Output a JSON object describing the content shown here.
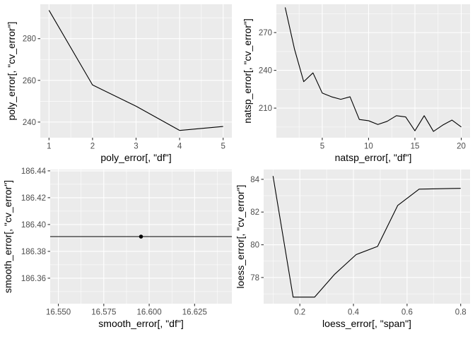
{
  "chart_data": [
    {
      "type": "line",
      "xlabel": "poly_error[, \"df\"]",
      "ylabel": "poly_error[, \"cv_error\"]",
      "xlim": [
        0.8,
        5.2
      ],
      "ylim": [
        232.5,
        296.5
      ],
      "xticks": [
        1,
        2,
        3,
        4,
        5
      ],
      "xtick_labels": [
        "1",
        "2",
        "3",
        "4",
        "5"
      ],
      "yticks": [
        240,
        260,
        280
      ],
      "ytick_labels": [
        "240",
        "260",
        "280"
      ],
      "grid": true,
      "series": [
        {
          "x": [
            1,
            2,
            3,
            4,
            5
          ],
          "y": [
            293.6,
            257.8,
            247.6,
            236.0,
            237.9
          ]
        }
      ]
    },
    {
      "type": "line",
      "xlabel": "natsp_error[, \"df\"]",
      "ylabel": "natsp_error[, \"cv_error\"]",
      "xlim": [
        0.05,
        20.95
      ],
      "ylim": [
        186.5,
        292.5
      ],
      "xticks": [
        5,
        10,
        15,
        20
      ],
      "xtick_labels": [
        "5",
        "10",
        "15",
        "20"
      ],
      "yticks": [
        210,
        240,
        270
      ],
      "ytick_labels": [
        "210",
        "240",
        "270"
      ],
      "grid": true,
      "series": [
        {
          "x": [
            1,
            2,
            3,
            4,
            5,
            6,
            7,
            8,
            9,
            10,
            11,
            12,
            13,
            14,
            15,
            16,
            17,
            18,
            19,
            20
          ],
          "y": [
            290.0,
            257.0,
            231.0,
            238.0,
            222.0,
            219.0,
            217.0,
            219.0,
            201.0,
            200.0,
            197.0,
            199.5,
            204.0,
            203.0,
            192.0,
            204.0,
            191.5,
            196.5,
            200.5,
            195.0
          ]
        }
      ]
    },
    {
      "type": "line",
      "xlabel": "smooth_error[, \"df\"]",
      "ylabel": "smooth_error[, \"cv_error\"]",
      "xlim": [
        16.5455,
        16.6455
      ],
      "ylim": [
        186.341,
        186.441
      ],
      "xticks": [
        16.55,
        16.575,
        16.6,
        16.625
      ],
      "xtick_labels": [
        "16.550",
        "16.575",
        "16.600",
        "16.625"
      ],
      "yticks": [
        186.36,
        186.38,
        186.4,
        186.42,
        186.44
      ],
      "ytick_labels": [
        "186.36",
        "186.38",
        "186.40",
        "186.42",
        "186.44"
      ],
      "grid": true,
      "hline": 186.391,
      "series": [
        {
          "x": [
            16.5955
          ],
          "y": [
            186.391
          ]
        }
      ]
    },
    {
      "type": "line",
      "xlabel": "loess_error[, \"span\"]",
      "ylabel": "loess_error[, \"cv_error\"]",
      "xlim": [
        0.065,
        0.835
      ],
      "ylim": [
        76.4,
        84.6
      ],
      "xticks": [
        0.2,
        0.4,
        0.6,
        0.8
      ],
      "xtick_labels": [
        "0.2",
        "0.4",
        "0.6",
        "0.8"
      ],
      "yticks": [
        78,
        80,
        82,
        84
      ],
      "ytick_labels": [
        "78",
        "80",
        "82",
        "84"
      ],
      "grid": true,
      "series": [
        {
          "x": [
            0.1,
            0.175,
            0.255,
            0.33,
            0.41,
            0.49,
            0.565,
            0.645,
            0.8
          ],
          "y": [
            84.2,
            76.8,
            76.8,
            78.2,
            79.4,
            79.9,
            82.4,
            83.4,
            83.45
          ]
        }
      ]
    }
  ]
}
